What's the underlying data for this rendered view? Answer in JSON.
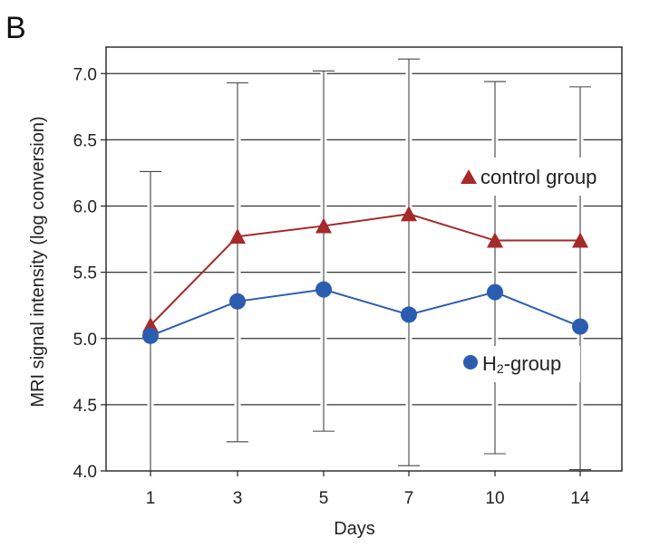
{
  "panel_label": "B",
  "colors": {
    "control": "#a52a2a",
    "h2": "#2a5db0",
    "axis": "#222222",
    "grid": "#333333",
    "errorbar": "#444444"
  },
  "chart_data": {
    "type": "line",
    "title": "",
    "xlabel": "Days",
    "ylabel": "MRI signal intensity (log conversion)",
    "categories": [
      "1",
      "3",
      "5",
      "7",
      "10",
      "14"
    ],
    "ylim": [
      4.0,
      7.2
    ],
    "yticks": [
      "4.0",
      "4.5",
      "5.0",
      "5.5",
      "6.0",
      "6.5",
      "7.0"
    ],
    "grid": true,
    "series": [
      {
        "name": "control group",
        "marker": "triangle",
        "values": [
          5.1,
          5.77,
          5.85,
          5.94,
          5.74,
          5.74
        ]
      },
      {
        "name": "H",
        "name_sub": "2",
        "name_rest": "-group",
        "marker": "circle",
        "values": [
          5.02,
          5.28,
          5.37,
          5.18,
          5.35,
          5.09
        ]
      }
    ],
    "error_bars": {
      "upper": [
        6.26,
        6.93,
        7.02,
        7.11,
        6.94,
        6.9
      ],
      "lower": [
        4.0,
        4.22,
        4.3,
        4.04,
        4.13,
        4.01
      ]
    }
  }
}
